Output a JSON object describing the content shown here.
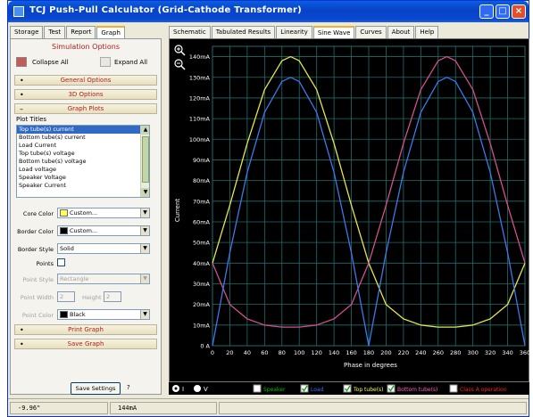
{
  "window": {
    "title": "TCJ Push-Pull Calculator (Grid-Cathode Transformer)",
    "minimize_label": "_",
    "maximize_label": "□",
    "close_label": "×"
  },
  "left_tabs": [
    "Storage",
    "Test",
    "Report",
    "Graph"
  ],
  "right_tabs": [
    "Schematic",
    "Tabulated Results",
    "Linearity",
    "Sine Wave",
    "Curves",
    "About",
    "Help"
  ],
  "sim": {
    "title": "Simulation Options",
    "collapse_all": "Collapse All",
    "expand_all": "Expand All",
    "sections": {
      "general": "General Options",
      "three_d": "3D Options",
      "graph_plots": "Graph Plots",
      "print_graph": "Print Graph",
      "save_graph": "Save Graph"
    },
    "plot_titles_label": "Plot Titles",
    "plot_titles": [
      "Top tube(s) current",
      "Bottom tube(s) current",
      "Load Current",
      "Top tube(s) voltage",
      "Bottom tube(s) voltage",
      "Load voltage",
      "Speaker Voltage",
      "Speaker Current"
    ],
    "core_color_label": "Core Color",
    "core_color_value": "Custom...",
    "border_color_label": "Border Color",
    "border_color_value": "Custom...",
    "border_style_label": "Border Style",
    "border_style_value": "Solid",
    "points_label": "Points",
    "point_style_label": "Point Style",
    "point_style_value": "Rectangle",
    "point_width_label": "Point Width",
    "point_width_value": "2",
    "height_label": "Height",
    "height_value": "2",
    "point_color_label": "Point Color",
    "point_color_value": "Black",
    "save_settings": "Save Settings",
    "help_mark": "?"
  },
  "chart_controls": {
    "radio_i": "I",
    "radio_v": "V",
    "toggles": [
      {
        "label": "Speaker",
        "checked": false,
        "color": "#00c000"
      },
      {
        "label": "Load",
        "checked": true,
        "color": "#3070ff"
      },
      {
        "label": "Top tube(s)",
        "checked": true,
        "color": "#ffff40"
      },
      {
        "label": "Bottom tube(s)",
        "checked": true,
        "color": "#ff60c0"
      },
      {
        "label": "Class A operation",
        "checked": false,
        "color": "#ff2020"
      }
    ]
  },
  "status": {
    "cell1": "-9.96\"",
    "cell2": "144mA"
  },
  "colors": {
    "grid": "#1f6e6e",
    "axis_text": "#ffffff",
    "top_tube": "#e6e64a",
    "bottom_tube": "#d4508a",
    "load": "#3a7ae8"
  },
  "chart_data": {
    "type": "line",
    "xlabel": "Phase in degrees",
    "ylabel": "Current",
    "xlim": [
      0,
      360
    ],
    "ylim": [
      0,
      145
    ],
    "x_ticks": [
      0,
      20,
      40,
      60,
      80,
      100,
      120,
      140,
      160,
      180,
      200,
      220,
      240,
      260,
      280,
      300,
      320,
      340,
      360
    ],
    "y_ticks": [
      "0 A",
      "10mA",
      "20mA",
      "30mA",
      "40mA",
      "50mA",
      "60mA",
      "70mA",
      "80mA",
      "90mA",
      "100mA",
      "110mA",
      "120mA",
      "130mA",
      "140mA"
    ],
    "y_tick_values": [
      0,
      10,
      20,
      30,
      40,
      50,
      60,
      70,
      80,
      90,
      100,
      110,
      120,
      130,
      140
    ],
    "series": [
      {
        "name": "Top tube(s)",
        "x": [
          0,
          20,
          40,
          60,
          80,
          90,
          100,
          120,
          140,
          160,
          180,
          200,
          220,
          240,
          260,
          270,
          280,
          300,
          320,
          340,
          360
        ],
        "values": [
          40,
          68,
          98,
          124,
          138,
          140,
          138,
          124,
          98,
          68,
          40,
          20,
          13,
          10,
          9,
          9,
          9,
          10,
          13,
          20,
          40
        ]
      },
      {
        "name": "Bottom tube(s)",
        "x": [
          0,
          20,
          40,
          60,
          80,
          90,
          100,
          120,
          140,
          160,
          180,
          200,
          220,
          240,
          260,
          270,
          280,
          300,
          320,
          340,
          360
        ],
        "values": [
          40,
          20,
          13,
          10,
          9,
          9,
          9,
          10,
          13,
          20,
          40,
          68,
          98,
          124,
          138,
          140,
          138,
          124,
          98,
          68,
          40
        ]
      },
      {
        "name": "Load",
        "x": [
          0,
          20,
          40,
          60,
          80,
          90,
          100,
          120,
          140,
          160,
          180,
          200,
          220,
          240,
          260,
          270,
          280,
          300,
          320,
          340,
          360
        ],
        "values": [
          0,
          45,
          84,
          113,
          128,
          130,
          128,
          113,
          84,
          45,
          0,
          45,
          84,
          113,
          128,
          130,
          128,
          113,
          84,
          45,
          0
        ]
      }
    ]
  }
}
